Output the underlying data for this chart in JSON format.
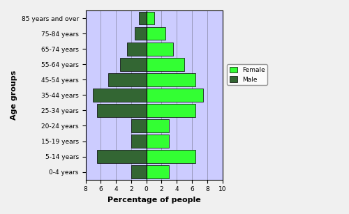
{
  "age_groups": [
    "0-4 years",
    "5-14 years",
    "15-19 years",
    "20-24 years",
    "25-34 years",
    "35-44 years",
    "45-54 years",
    "55-64 years",
    "65-74 years",
    "75-84 years",
    "85 years and over"
  ],
  "male_values": [
    2.0,
    6.5,
    2.0,
    2.0,
    6.5,
    7.0,
    5.0,
    3.5,
    2.5,
    1.5,
    1.0
  ],
  "female_values": [
    3.0,
    6.5,
    3.0,
    3.0,
    6.5,
    7.5,
    6.5,
    5.0,
    3.5,
    2.5,
    1.0
  ],
  "male_color": "#336633",
  "female_color": "#33FF33",
  "background_color": "#ccccff",
  "outer_background": "#f0f0f0",
  "xlim_min": -8,
  "xlim_max": 10,
  "xticks": [
    -8,
    -6,
    -4,
    -2,
    0,
    2,
    4,
    6,
    8,
    10
  ],
  "xticklabels": [
    "8",
    "6",
    "4",
    "2",
    "0",
    "2",
    "4",
    "6",
    "8",
    "10"
  ],
  "xlabel": "Percentage of people",
  "ylabel": "Age groups",
  "bar_height": 0.85,
  "legend_female": "Female",
  "legend_male": "Male",
  "grid_color": "#9999bb",
  "tick_fontsize": 6.5,
  "label_fontsize": 8
}
